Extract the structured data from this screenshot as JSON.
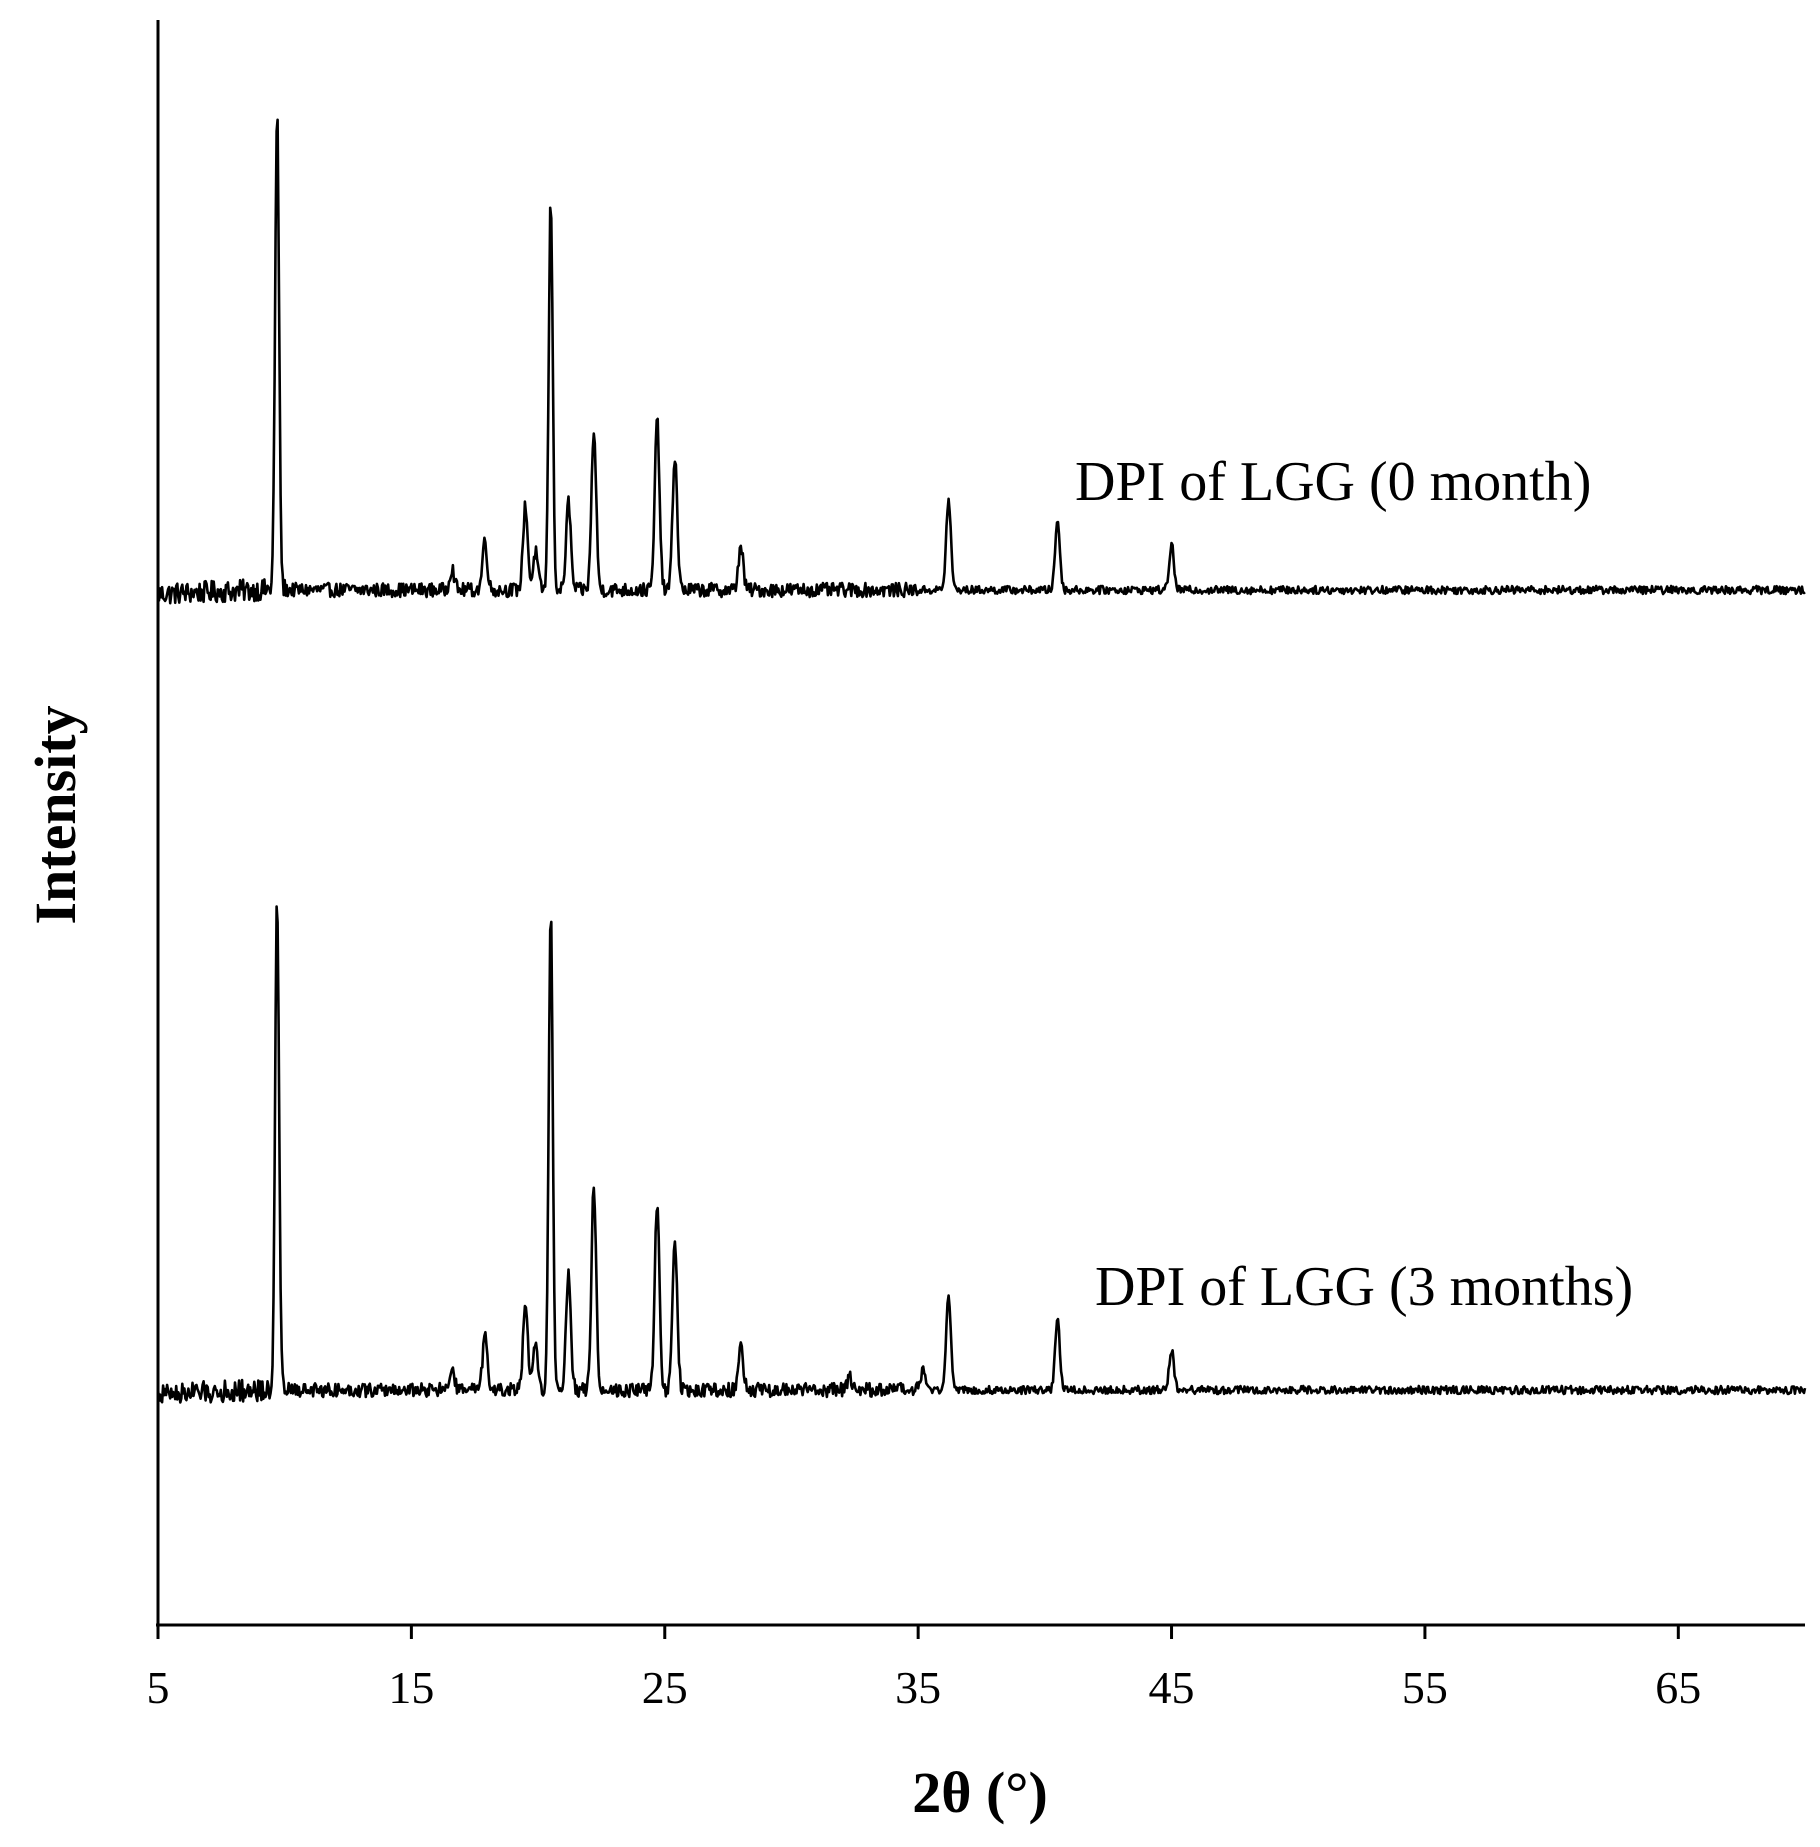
{
  "chart_data": {
    "type": "line",
    "xlabel": "2θ (°)",
    "ylabel": "Intensity",
    "xlim": [
      5,
      70
    ],
    "x_ticks": [
      "5",
      "15",
      "25",
      "35",
      "45",
      "55",
      "65"
    ],
    "y_ticks": [],
    "grid": false,
    "legend": "none (series labeled directly on plot)",
    "line_color": "#000000",
    "series": [
      {
        "name": "DPI of LGG (0 month)",
        "baseline": 0,
        "peaks": [
          {
            "x": 9.7,
            "y": 477
          },
          {
            "x": 16.6,
            "y": 22
          },
          {
            "x": 17.9,
            "y": 50
          },
          {
            "x": 19.5,
            "y": 85
          },
          {
            "x": 19.9,
            "y": 38
          },
          {
            "x": 20.5,
            "y": 389
          },
          {
            "x": 21.2,
            "y": 88
          },
          {
            "x": 22.2,
            "y": 160
          },
          {
            "x": 24.7,
            "y": 170
          },
          {
            "x": 25.4,
            "y": 135
          },
          {
            "x": 28.0,
            "y": 45
          },
          {
            "x": 36.2,
            "y": 90
          },
          {
            "x": 40.5,
            "y": 70
          },
          {
            "x": 45.0,
            "y": 45
          }
        ]
      },
      {
        "name": "DPI of LGG (3 months)",
        "baseline": -800,
        "peaks": [
          {
            "x": 9.7,
            "y": 490
          },
          {
            "x": 16.6,
            "y": 22
          },
          {
            "x": 17.9,
            "y": 52
          },
          {
            "x": 19.5,
            "y": 85
          },
          {
            "x": 19.9,
            "y": 45
          },
          {
            "x": 20.5,
            "y": 482
          },
          {
            "x": 21.2,
            "y": 120
          },
          {
            "x": 22.2,
            "y": 205
          },
          {
            "x": 24.7,
            "y": 190
          },
          {
            "x": 25.4,
            "y": 150
          },
          {
            "x": 28.0,
            "y": 50
          },
          {
            "x": 32.3,
            "y": 12
          },
          {
            "x": 35.2,
            "y": 20
          },
          {
            "x": 36.2,
            "y": 95
          },
          {
            "x": 40.5,
            "y": 70
          },
          {
            "x": 45.0,
            "y": 40
          }
        ]
      }
    ]
  }
}
